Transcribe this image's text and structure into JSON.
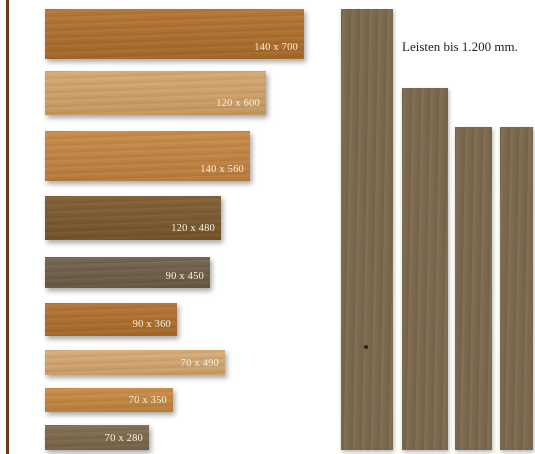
{
  "colors": {
    "edge_line": "#6b3a1a",
    "label_text": "#f6efe3",
    "note_text": "#222222"
  },
  "swatches": [
    {
      "label": "140 x 700",
      "color": "#b3712c"
    },
    {
      "label": "120 x 600",
      "color": "#d6a66a"
    },
    {
      "label": "140 x 560",
      "color": "#c88742"
    },
    {
      "label": "120 x 480",
      "color": "#7e5a2e"
    },
    {
      "label": "90 x 450",
      "color": "#6f6048"
    },
    {
      "label": "90 x 360",
      "color": "#b3712c"
    },
    {
      "label": "70 x 490",
      "color": "#d9aa72"
    },
    {
      "label": "70 x 350",
      "color": "#c98a3f"
    },
    {
      "label": "70 x 280",
      "color": "#7f6a4a"
    }
  ],
  "planks": {
    "color": "#7c6a4f"
  },
  "note": "Leisten bis 1.200 mm."
}
